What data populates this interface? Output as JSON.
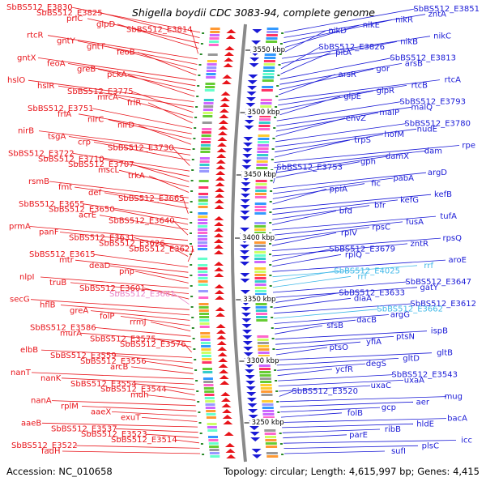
{
  "title": "Shigella boydii CDC 3083-94, complete genome",
  "accession": "Accession: NC_010658",
  "summary": "Topology: circular; Length: 4,615,997 bp; Genes: 4,415",
  "colors": {
    "left": "#e8141a",
    "right": "#1a1ad6",
    "cyan": "#3fb8e8",
    "pink": "#e884c8",
    "ruler": "#8a8a8a"
  },
  "ruler_ticks": [
    "3550 kbp",
    "3500 kbp",
    "3450 kbp",
    "3400 kbp",
    "3350 kbp",
    "3300 kbp",
    "3250 kbp"
  ],
  "left_labels": [
    "SbBS512_E3830",
    "SbBS512_E3825",
    "prlC",
    "glpD",
    "SbBS512_E3814",
    "rtcR",
    "gntY",
    "gntT",
    "feoB",
    "gntX",
    "feoA",
    "greB",
    "pckA",
    "hslO",
    "hslR",
    "SbBS512_E3775",
    "mrcA",
    "frlR",
    "SbBS512_E3751",
    "frlA",
    "nirC",
    "nirD",
    "nirB",
    "tsgA",
    "crp",
    "SbBS512_E3730",
    "SbBS512_E3722",
    "SbBS512_E3710",
    "SbBS512_E3707",
    "mscL",
    "trkA",
    "rsmB",
    "fmt",
    "def",
    "SbBS512_E3665",
    "SbBS512_E3655",
    "SbBS512_E3650",
    "acrE",
    "SbBS512_E3640",
    "prmA",
    "panF",
    "SbBS512_E3631",
    "SbBS512_E3626",
    "SbBS512_E3621",
    "SbBS512_E3615",
    "mtr",
    "deaD",
    "pnp",
    "nlpI",
    "truB",
    "SbBS512_E3601",
    "SbBS512_E3661",
    "secG",
    "hflB",
    "greA",
    "folP",
    "rrmJ",
    "SbBS512_E3586",
    "murA",
    "SbBS512_E3575",
    "SbBS512_E3576",
    "elbB",
    "SbBS512_E3559",
    "SbBS512_E3556",
    "arcB",
    "nanT",
    "nanK",
    "SbBS512_E3554",
    "SbBS512_E3544",
    "mdh",
    "nanA",
    "rplM",
    "aaeX",
    "exuT",
    "aaeB",
    "SbBS512_E3537",
    "SbBS512_E3523",
    "SbBS512_E3514",
    "SbBS512_E3522",
    "fadH"
  ],
  "right_labels": [
    "SbBS512_E3851",
    "zntA",
    "nikR",
    "nikE",
    "nikD",
    "nikC",
    "nikB",
    "SbBS512_E3826",
    "pitA",
    "SbBS512_E3813",
    "arsB",
    "gor",
    "arsR",
    "rtcA",
    "rtcB",
    "glpR",
    "glpE",
    "SbBS512_E3793",
    "malQ",
    "malP",
    "envZ",
    "SbBS512_E3780",
    "nudE",
    "hofM",
    "trpS",
    "rpe",
    "dam",
    "damX",
    "gph",
    "SbBS512_E3753",
    "argD",
    "pabA",
    "fic",
    "ppiA",
    "kefB",
    "kefG",
    "bfr",
    "bfd",
    "tufA",
    "fusA",
    "rpsC",
    "rplV",
    "rpsQ",
    "zntR",
    "SbBS512_E3679",
    "rplQ",
    "aroE",
    "rrf",
    "SbBS512_E4025",
    "rrf",
    "SbBS512_E3647",
    "gatY",
    "SbBS512_E3633",
    "diaA",
    "SbBS512_E3612",
    "SbBS512_E3662",
    "argG",
    "dacB",
    "sfsB",
    "ispB",
    "ptsN",
    "yfiA",
    "ptsO",
    "gltB",
    "gltD",
    "degS",
    "ycfR",
    "SbBS512_E3543",
    "uxaA",
    "uxaC",
    "SbBS512_E3520",
    "mug",
    "aer",
    "gcp",
    "folB",
    "bacA",
    "hldE",
    "ribB",
    "parE",
    "icc",
    "plsC",
    "sufI"
  ]
}
